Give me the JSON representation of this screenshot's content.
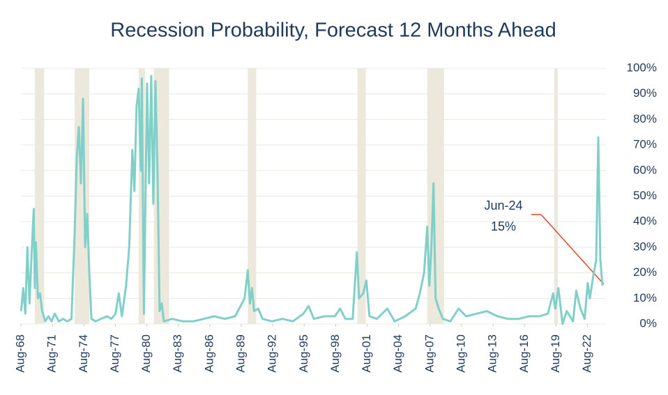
{
  "chart_data": {
    "type": "line",
    "title": "Recession Probability, Forecast 12 Months Ahead",
    "series": [
      {
        "name": "Recession probability",
        "color": "#80cfc9",
        "x": [
          1968.6,
          1968.8,
          1969.0,
          1969.2,
          1969.4,
          1969.6,
          1969.8,
          1969.9,
          1970.0,
          1970.2,
          1970.4,
          1970.6,
          1970.9,
          1971.2,
          1971.5,
          1971.8,
          1972.2,
          1972.6,
          1973.0,
          1973.4,
          1973.7,
          1973.9,
          1974.1,
          1974.3,
          1974.5,
          1974.7,
          1974.9,
          1975.1,
          1975.3,
          1975.7,
          1976.2,
          1976.8,
          1977.2,
          1977.6,
          1977.9,
          1978.2,
          1978.6,
          1978.9,
          1979.2,
          1979.4,
          1979.6,
          1979.8,
          1980.0,
          1980.1,
          1980.3,
          1980.6,
          1980.8,
          1981.0,
          1981.2,
          1981.4,
          1981.6,
          1981.8,
          1982.0,
          1982.2,
          1983,
          1984,
          1985,
          1986,
          1987,
          1988,
          1989,
          1989.9,
          1990.2,
          1990.4,
          1990.6,
          1990.8,
          1991.2,
          1991.6,
          1992.5,
          1993.5,
          1994.5,
          1995.5,
          1996,
          1996.5,
          1997.5,
          1998.5,
          1999,
          1999.5,
          2000.2,
          2000.6,
          2000.8,
          2001.2,
          2001.5,
          2001.8,
          2002.5,
          2003.5,
          2004.2,
          2005.2,
          2006.2,
          2006.6,
          2007.0,
          2007.3,
          2007.5,
          2007.7,
          2007.9,
          2008.1,
          2008.4,
          2008.8,
          2009.5,
          2010.3,
          2011,
          2012,
          2013,
          2014,
          2015,
          2016,
          2017,
          2018,
          2018.8,
          2019.3,
          2019.5,
          2019.8,
          2020.2,
          2020.6,
          2021.2,
          2021.5,
          2021.9,
          2022.3,
          2022.6,
          2022.8,
          2023.1,
          2023.4,
          2023.6,
          2023.8,
          2024.0
        ],
        "values": [
          5,
          14,
          4,
          30,
          8,
          27,
          45,
          14,
          32,
          10,
          12,
          5,
          1,
          3,
          1,
          4,
          1,
          2,
          1,
          2,
          35,
          65,
          77,
          55,
          88,
          30,
          43,
          20,
          2,
          1,
          2,
          3,
          2,
          4,
          12,
          3,
          15,
          30,
          68,
          52,
          85,
          92,
          60,
          96,
          4,
          94,
          55,
          97,
          47,
          95,
          60,
          5,
          8,
          1,
          2,
          1,
          1,
          2,
          3,
          2,
          3,
          10,
          21,
          8,
          14,
          5,
          6,
          2,
          1,
          2,
          1,
          4,
          7,
          2,
          3,
          3,
          6,
          2,
          2,
          28,
          10,
          12,
          17,
          3,
          2,
          6,
          1,
          3,
          6,
          12,
          20,
          38,
          15,
          30,
          55,
          10,
          6,
          2,
          1,
          6,
          3,
          4,
          5,
          3,
          2,
          2,
          3,
          3,
          4,
          12,
          6,
          14,
          0,
          5,
          1,
          13,
          6,
          2,
          16,
          10,
          18,
          25,
          73,
          25,
          15
        ]
      }
    ],
    "recessions": [
      [
        1969.9,
        1970.8
      ],
      [
        1973.7,
        1975.1
      ],
      [
        1979.8,
        1980.4
      ],
      [
        1981.25,
        1982.7
      ],
      [
        1990.2,
        1991.0
      ],
      [
        2000.65,
        2001.45
      ],
      [
        2007.3,
        2008.9
      ],
      [
        2019.4,
        2019.75
      ]
    ],
    "xlim": [
      1968.58,
      2024.4
    ],
    "xticks": [
      {
        "value": 1968.58,
        "label": "Aug-68"
      },
      {
        "value": 1971.58,
        "label": "Aug-71"
      },
      {
        "value": 1974.58,
        "label": "Aug-74"
      },
      {
        "value": 1977.58,
        "label": "Aug-77"
      },
      {
        "value": 1980.58,
        "label": "Aug-80"
      },
      {
        "value": 1983.58,
        "label": "Aug-83"
      },
      {
        "value": 1986.58,
        "label": "Aug-86"
      },
      {
        "value": 1989.58,
        "label": "Aug-89"
      },
      {
        "value": 1992.58,
        "label": "Aug-92"
      },
      {
        "value": 1995.58,
        "label": "Aug-95"
      },
      {
        "value": 1998.58,
        "label": "Aug-98"
      },
      {
        "value": 2001.58,
        "label": "Aug-01"
      },
      {
        "value": 2004.58,
        "label": "Aug-04"
      },
      {
        "value": 2007.58,
        "label": "Aug-07"
      },
      {
        "value": 2010.58,
        "label": "Aug-10"
      },
      {
        "value": 2013.58,
        "label": "Aug-13"
      },
      {
        "value": 2016.58,
        "label": "Aug-16"
      },
      {
        "value": 2019.58,
        "label": "Aug-19"
      },
      {
        "value": 2022.58,
        "label": "Aug-22"
      }
    ],
    "ylim": [
      0,
      100
    ],
    "yticks": [
      {
        "value": 0,
        "label": "0%"
      },
      {
        "value": 10,
        "label": "10%"
      },
      {
        "value": 20,
        "label": "20%"
      },
      {
        "value": 30,
        "label": "30%"
      },
      {
        "value": 40,
        "label": "40%"
      },
      {
        "value": 50,
        "label": "50%"
      },
      {
        "value": 60,
        "label": "60%"
      },
      {
        "value": 70,
        "label": "70%"
      },
      {
        "value": 80,
        "label": "80%"
      },
      {
        "value": 90,
        "label": "90%"
      },
      {
        "value": 100,
        "label": "100%"
      }
    ],
    "grid": true,
    "annotation": [
      "Jun-24",
      "15%"
    ]
  }
}
